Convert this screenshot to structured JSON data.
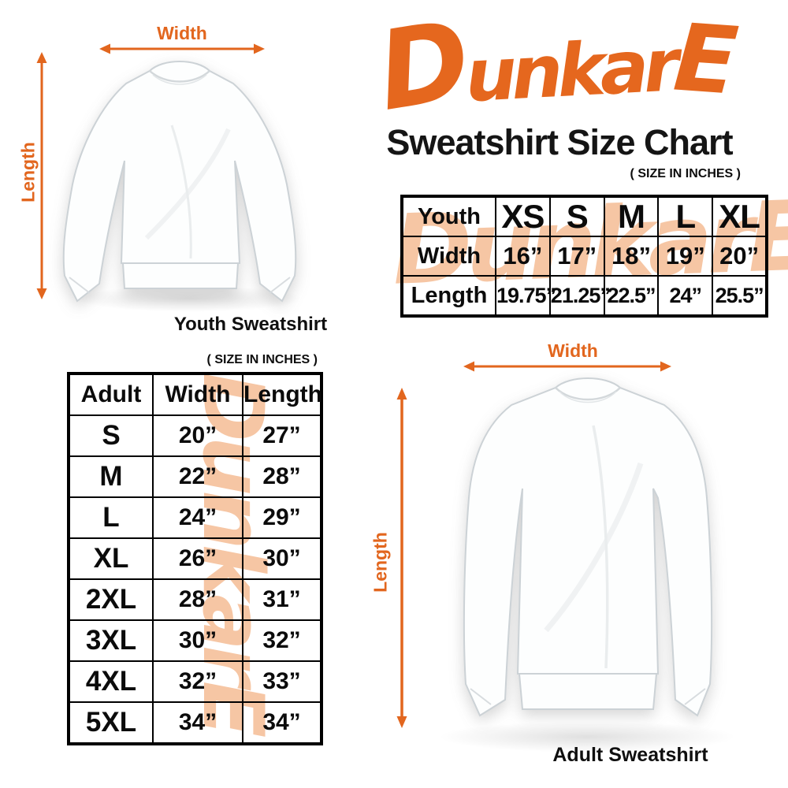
{
  "brand": {
    "logo_d": "D",
    "logo_mid": "unkar",
    "logo_e": "E",
    "logo_full": "DunkarE",
    "accent_orange": "#E5671E",
    "watermark_peach": "#F6C6A4"
  },
  "header": {
    "title": "Sweatshirt Size Chart"
  },
  "figures": {
    "youth": {
      "caption": "Youth Sweatshirt",
      "width_label": "Width",
      "length_label": "Length"
    },
    "adult": {
      "caption": "Adult Sweatshirt",
      "width_label": "Width",
      "length_label": "Length"
    }
  },
  "chart_data": [
    {
      "type": "table",
      "title": "Youth Sweatshirt Size Chart",
      "units_label": "( SIZE IN INCHES )",
      "unit": "inches",
      "columns": [
        "Youth",
        "XS",
        "S",
        "M",
        "L",
        "XL"
      ],
      "rows": [
        [
          "Width",
          "16”",
          "17”",
          "18”",
          "19”",
          "20”"
        ],
        [
          "Length",
          "19.75”",
          "21.25”",
          "22.5”",
          "24”",
          "25.5”"
        ]
      ]
    },
    {
      "type": "table",
      "title": "Adult Sweatshirt Size Chart",
      "units_label": "( SIZE IN INCHES )",
      "unit": "inches",
      "columns": [
        "Adult",
        "Width",
        "Length"
      ],
      "rows": [
        [
          "S",
          "20”",
          "27”"
        ],
        [
          "M",
          "22”",
          "28”"
        ],
        [
          "L",
          "24”",
          "29”"
        ],
        [
          "XL",
          "26”",
          "30”"
        ],
        [
          "2XL",
          "28”",
          "31”"
        ],
        [
          "3XL",
          "30”",
          "32”"
        ],
        [
          "4XL",
          "32”",
          "33”"
        ],
        [
          "5XL",
          "34”",
          "34”"
        ]
      ]
    }
  ]
}
